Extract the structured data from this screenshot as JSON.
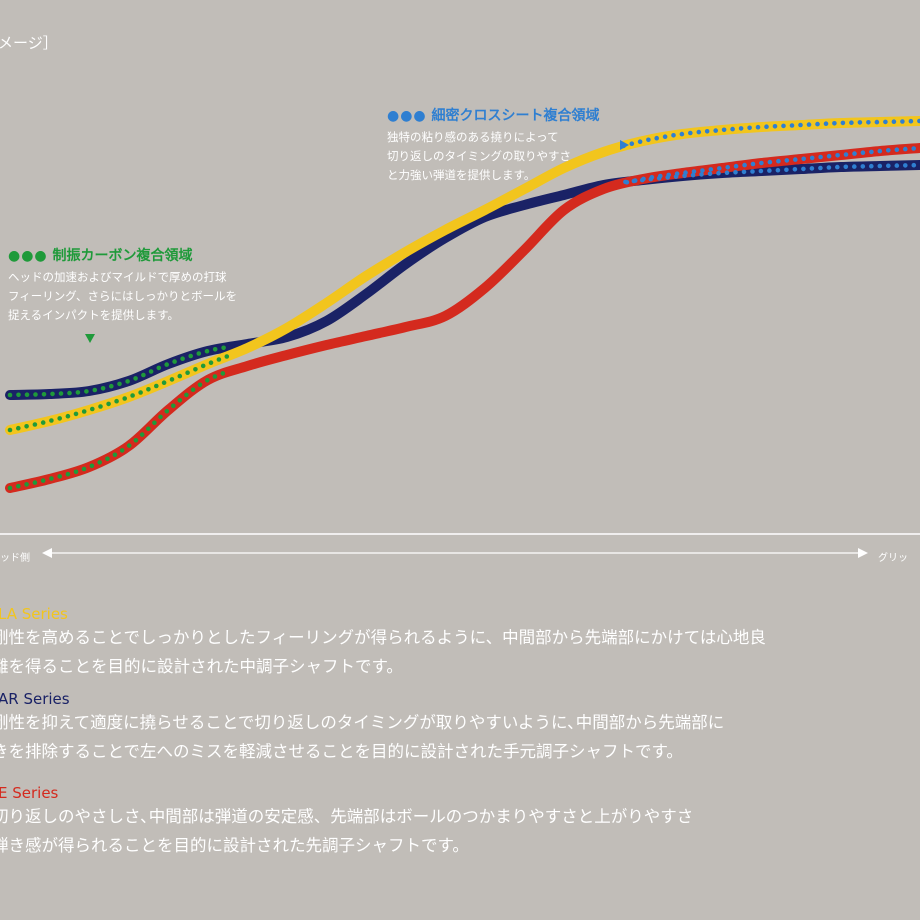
{
  "page_title": "メージ］",
  "annotations": {
    "carbon": {
      "dots": "●●●",
      "title": "制振カーボン複合領域",
      "lines": [
        "ヘッドの加速およびマイルドで厚めの打球",
        "フィーリング、さらにはしっかりとボールを",
        "捉えるインパクトを提供します。"
      ],
      "color": "#1f9a3a"
    },
    "cross": {
      "dots": "●●●",
      "title": "細密クロスシート複合領域",
      "lines": [
        "独特の粘り感のある撓りによって",
        "切り返しのタイミングの取りやすさ",
        "と力強い弾道を提供します。"
      ],
      "color": "#2f7fd1"
    }
  },
  "axis": {
    "left_label": "ッド側",
    "right_label": "グリッ"
  },
  "chart_data": {
    "type": "line",
    "x": [
      0,
      1,
      2,
      3,
      4,
      5,
      6,
      7,
      8,
      9,
      10,
      11,
      12,
      13,
      14,
      15,
      16,
      17,
      18,
      19,
      20,
      21,
      22,
      23
    ],
    "series": [
      {
        "color": "#1a2266",
        "values": [
          18.6,
          18.8,
          19.4,
          21.4,
          24.8,
          27.4,
          28.8,
          30.2,
          33.4,
          38.8,
          44.8,
          50.0,
          54.2,
          56.6,
          58.6,
          60.6,
          61.6,
          62.4,
          63.0,
          63.4,
          63.8,
          64.2,
          64.4,
          64.6
        ]
      },
      {
        "color": "#f2c51d",
        "values": [
          11.6,
          13.4,
          15.6,
          18.2,
          21.4,
          24.8,
          28.0,
          32.0,
          37.0,
          42.4,
          47.2,
          51.6,
          55.6,
          59.8,
          64.0,
          67.2,
          69.4,
          70.8,
          71.6,
          72.2,
          72.6,
          73.0,
          73.2,
          73.4
        ]
      },
      {
        "color": "#d42a1e",
        "values": [
          0.0,
          1.8,
          4.2,
          8.4,
          15.6,
          21.6,
          24.4,
          26.6,
          28.6,
          30.4,
          32.2,
          34.4,
          40.0,
          47.6,
          55.6,
          59.8,
          61.8,
          63.0,
          64.0,
          65.0,
          65.8,
          66.6,
          67.4,
          68.0
        ]
      }
    ],
    "overlay_dots": [
      {
        "on_series": 0,
        "x_range": [
          0,
          5.5
        ],
        "color": "#1f9a3a"
      },
      {
        "on_series": 1,
        "x_range": [
          0,
          5.5
        ],
        "color": "#1f9a3a"
      },
      {
        "on_series": 2,
        "x_range": [
          0,
          5.5
        ],
        "color": "#1f9a3a"
      },
      {
        "on_series": 0,
        "x_range": [
          15.5,
          23
        ],
        "color": "#2f7fd1"
      },
      {
        "on_series": 1,
        "x_range": [
          15.5,
          23
        ],
        "color": "#2f7fd1"
      },
      {
        "on_series": 2,
        "x_range": [
          15.5,
          23
        ],
        "color": "#2f7fd1"
      }
    ],
    "grid": false,
    "legend": "none"
  },
  "descriptions": [
    {
      "name": "LA Series",
      "lines": [
        "剛性を高めることでしっかりとしたフィーリングが得られるように、中間部から先端部にかけては心地良",
        "離を得ることを目的に設計された中調子シャフトです。"
      ]
    },
    {
      "name": "AR Series",
      "lines": [
        "剛性を抑えて適度に撓らせることで切り返しのタイミングが取りやすいように､中間部から先端部に",
        "きを排除することで左へのミスを軽減させることを目的に設計された手元調子シャフトです。"
      ]
    },
    {
      "name": "E Series",
      "lines": [
        "切り返しのやさしさ､中間部は弾道の安定感、先端部はボールのつかまりやすさと上がりやすさ",
        "弾き感が得られることを目的に設計された先調子シャフトです。"
      ]
    }
  ]
}
